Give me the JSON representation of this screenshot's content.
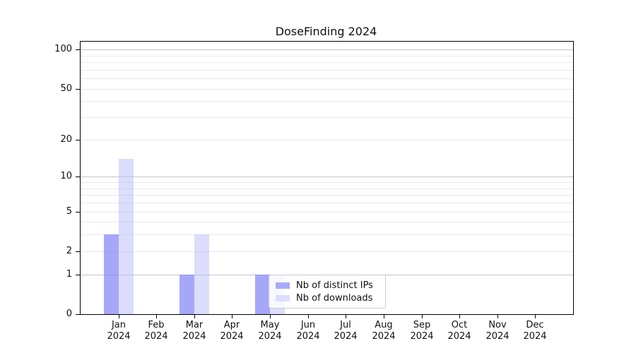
{
  "chart_data": {
    "type": "bar",
    "title": "DoseFinding 2024",
    "x": [
      "Jan",
      "Feb",
      "Mar",
      "Apr",
      "May",
      "Jun",
      "Jul",
      "Aug",
      "Sep",
      "Oct",
      "Nov",
      "Dec"
    ],
    "x_year": "2024",
    "series": [
      {
        "name": "Nb of distinct IPs",
        "color": "#aaaafa",
        "fill": "rgba(122,122,248,0.66)",
        "values": [
          3,
          0,
          1,
          0,
          1,
          0,
          0,
          0,
          0,
          0,
          0,
          0
        ]
      },
      {
        "name": "Nb of downloads",
        "color": "#dcdcfc",
        "fill": "rgba(185,185,250,0.5)",
        "values": [
          14,
          0,
          3,
          0,
          1,
          0,
          0,
          0,
          0,
          0,
          0,
          0
        ]
      }
    ],
    "y_scale": "log10(1+v)",
    "y_ticks": [
      0,
      1,
      2,
      5,
      10,
      20,
      50,
      100
    ],
    "y_top": 115,
    "ylim": [
      0,
      115
    ],
    "major_grid": [
      1,
      10,
      100
    ],
    "minor_grid": [
      2,
      3,
      4,
      5,
      6,
      7,
      8,
      9,
      20,
      30,
      40,
      50,
      60,
      70,
      80,
      90
    ],
    "grid": true,
    "legend_position": "lower center",
    "colors": {
      "major_grid": "#c6c6c6",
      "minor_grid": "#e9e9e9",
      "spine": "#000000",
      "text": "#111111",
      "legend_border": "#cccccc",
      "legend_bg": "rgba(255,255,255,0.8)"
    }
  }
}
